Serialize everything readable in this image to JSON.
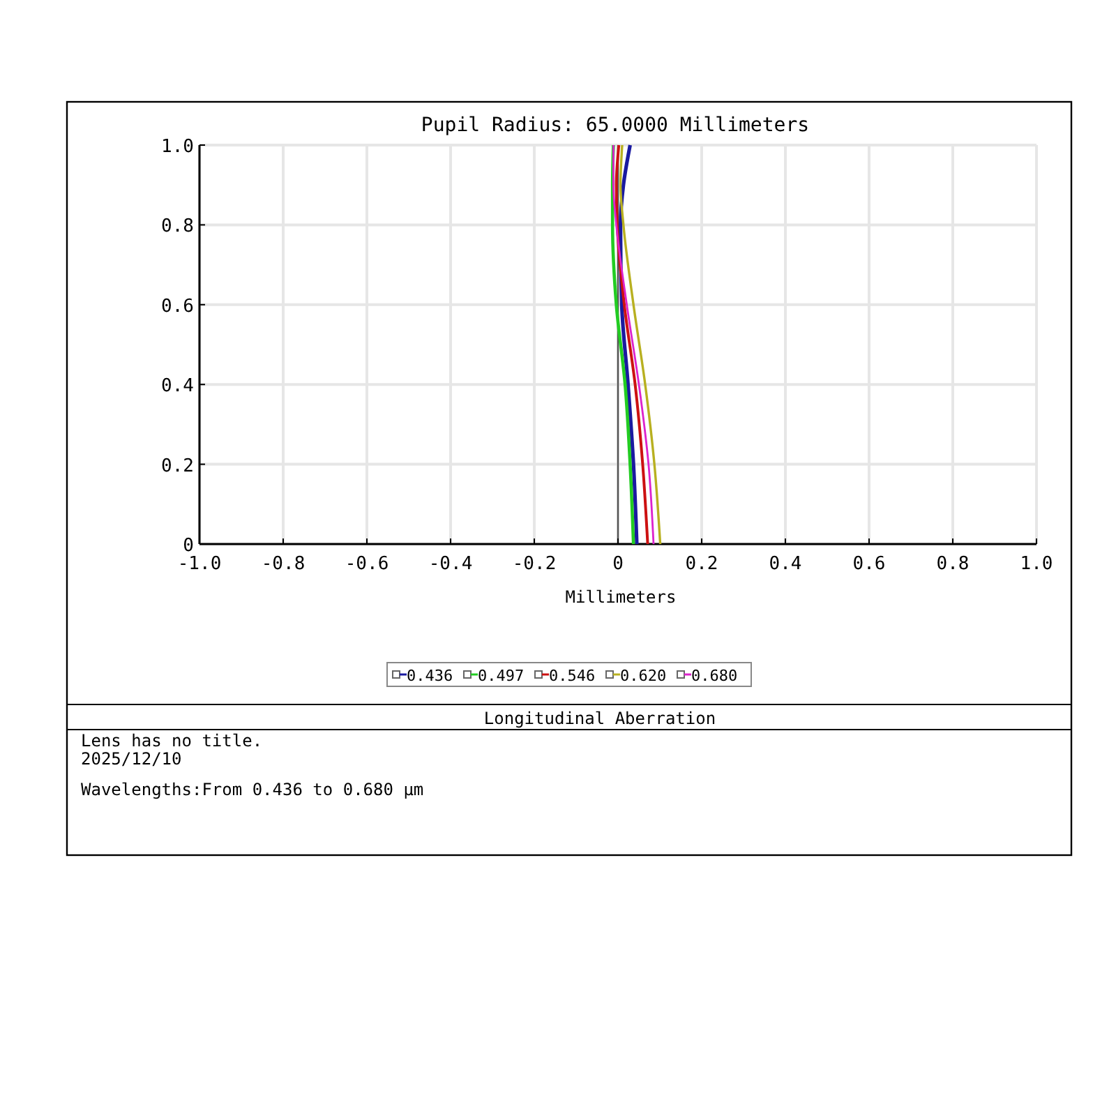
{
  "chart_data": {
    "type": "line",
    "title": "Pupil Radius: 65.0000 Millimeters",
    "xlabel": "Millimeters",
    "xlim": [
      -1,
      1
    ],
    "xticks": [
      {
        "value": -1,
        "label": "-1.0"
      },
      {
        "value": -0.8,
        "label": "-0.8"
      },
      {
        "value": -0.6,
        "label": "-0.6"
      },
      {
        "value": -0.4,
        "label": "-0.4"
      },
      {
        "value": -0.2,
        "label": "-0.2"
      },
      0,
      {
        "value": 0.2,
        "label": "0.2"
      },
      {
        "value": 0.4,
        "label": "0.4"
      },
      {
        "value": 0.6,
        "label": "0.6"
      },
      {
        "value": 0.8,
        "label": "0.8"
      },
      {
        "value": 1,
        "label": "1.0"
      }
    ],
    "ylim": [
      0,
      1
    ],
    "yticks": [
      0,
      {
        "value": 0.2,
        "label": "0.2"
      },
      {
        "value": 0.4,
        "label": "0.4"
      },
      {
        "value": 0.6,
        "label": "0.6"
      },
      {
        "value": 0.8,
        "label": "0.8"
      },
      {
        "value": 1,
        "label": "1.0"
      }
    ],
    "grid": true,
    "legend": "bottom",
    "marker": "none",
    "line_style": "solid",
    "ref_lines": [
      {
        "axis": "x",
        "value": 0,
        "color": "#555555"
      }
    ],
    "series": [
      {
        "name": "0.436",
        "color": "#1a1aa0",
        "x": [
          0.045,
          0.037,
          0.024,
          0.009,
          0.006,
          0.013,
          0.029
        ],
        "values": [
          0,
          0.2,
          0.4,
          0.6,
          0.8,
          0.9,
          1
        ]
      },
      {
        "name": "0.497",
        "color": "#22cc22",
        "x": [
          0.037,
          0.029,
          0.017,
          -0.004,
          -0.013,
          -0.013,
          -0.011
        ],
        "values": [
          0,
          0.2,
          0.4,
          0.6,
          0.8,
          0.9,
          1
        ]
      },
      {
        "name": "0.546",
        "color": "#cc1111",
        "x": [
          0.071,
          0.059,
          0.041,
          0.015,
          -0.002,
          -0.004,
          0.002
        ],
        "values": [
          0,
          0.2,
          0.4,
          0.6,
          0.8,
          0.9,
          1
        ]
      },
      {
        "name": "0.620",
        "color": "#b8b020",
        "x": [
          0.101,
          0.087,
          0.065,
          0.037,
          0.013,
          0.006,
          0.01
        ],
        "values": [
          0,
          0.2,
          0.4,
          0.6,
          0.8,
          0.9,
          1
        ]
      },
      {
        "name": "0.680",
        "color": "#dd22cc",
        "x": [
          0.085,
          0.073,
          0.05,
          0.021,
          -0.004,
          -0.011,
          -0.011
        ],
        "values": [
          0,
          0.2,
          0.4,
          0.6,
          0.8,
          0.9,
          1
        ]
      }
    ],
    "annotations": [
      "Longitudinal Aberration",
      "Lens has no title.",
      "2025/12/10",
      "Wavelengths:From 0.436 to 0.680 µm"
    ]
  }
}
